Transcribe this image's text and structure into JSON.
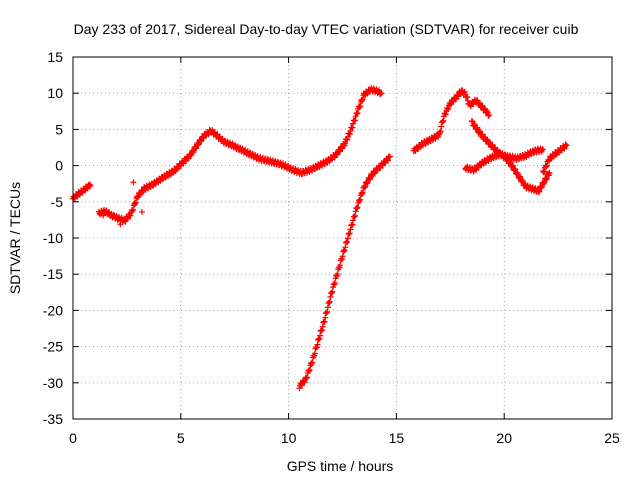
{
  "chart_data": {
    "type": "scatter",
    "title": "Day 233 of 2017, Sidereal Day-to-day VTEC variation (SDTVAR) for receiver cuib",
    "xlabel": "GPS time / hours",
    "ylabel": "SDTVAR / TECUs",
    "xlim": [
      0,
      25
    ],
    "ylim": [
      -35,
      15
    ],
    "xticks": [
      0,
      5,
      10,
      15,
      20,
      25
    ],
    "yticks": [
      -35,
      -30,
      -25,
      -20,
      -15,
      -10,
      -5,
      0,
      5,
      10,
      15
    ],
    "grid": true,
    "marker": "+",
    "series": [
      {
        "name": "SDTVAR",
        "color": "#ff0000",
        "segments": [
          [
            [
              0.0,
              -4.6
            ],
            [
              0.2,
              -4.0
            ],
            [
              0.4,
              -3.6
            ],
            [
              0.6,
              -3.1
            ],
            [
              0.8,
              -2.7
            ]
          ],
          [
            [
              1.2,
              -6.6
            ],
            [
              1.5,
              -6.3
            ],
            [
              1.8,
              -6.9
            ],
            [
              2.1,
              -7.3
            ],
            [
              2.4,
              -7.6
            ],
            [
              2.7,
              -6.6
            ],
            [
              3.0,
              -4.2
            ],
            [
              3.3,
              -3.2
            ],
            [
              3.7,
              -2.6
            ],
            [
              4.2,
              -1.6
            ],
            [
              4.7,
              -0.7
            ],
            [
              5.0,
              0.2
            ],
            [
              5.4,
              1.3
            ],
            [
              5.8,
              3.0
            ],
            [
              6.1,
              4.2
            ],
            [
              6.4,
              4.8
            ],
            [
              6.7,
              4.1
            ],
            [
              7.0,
              3.3
            ],
            [
              7.4,
              2.8
            ],
            [
              7.8,
              2.2
            ],
            [
              8.2,
              1.6
            ],
            [
              8.6,
              1.0
            ],
            [
              9.0,
              0.7
            ],
            [
              9.4,
              0.4
            ],
            [
              9.8,
              0.0
            ],
            [
              10.2,
              -0.6
            ],
            [
              10.6,
              -1.0
            ],
            [
              11.0,
              -0.6
            ],
            [
              11.4,
              0.0
            ],
            [
              11.8,
              0.6
            ],
            [
              12.2,
              1.5
            ],
            [
              12.6,
              3.0
            ],
            [
              12.9,
              5.0
            ],
            [
              13.2,
              7.5
            ],
            [
              13.5,
              9.8
            ],
            [
              13.8,
              10.5
            ],
            [
              14.1,
              10.3
            ],
            [
              14.3,
              10.0
            ]
          ],
          [
            [
              10.5,
              -30.5
            ],
            [
              10.8,
              -29.5
            ],
            [
              11.1,
              -27.0
            ],
            [
              11.4,
              -24.0
            ],
            [
              11.7,
              -21.0
            ],
            [
              12.0,
              -17.5
            ],
            [
              12.3,
              -14.5
            ],
            [
              12.6,
              -11.5
            ],
            [
              12.9,
              -8.5
            ],
            [
              13.2,
              -5.5
            ],
            [
              13.5,
              -3.0
            ],
            [
              13.8,
              -1.5
            ],
            [
              14.1,
              -0.5
            ],
            [
              14.4,
              0.3
            ],
            [
              14.7,
              1.2
            ]
          ],
          [
            [
              15.8,
              2.0
            ],
            [
              16.2,
              3.0
            ],
            [
              16.6,
              3.6
            ],
            [
              17.0,
              4.3
            ],
            [
              17.2,
              6.8
            ],
            [
              17.5,
              8.6
            ],
            [
              17.8,
              9.5
            ],
            [
              18.0,
              10.3
            ],
            [
              18.2,
              9.9
            ],
            [
              18.4,
              8.3
            ],
            [
              18.7,
              9.0
            ],
            [
              19.0,
              8.0
            ],
            [
              19.3,
              7.0
            ]
          ],
          [
            [
              18.5,
              6.0
            ],
            [
              18.9,
              4.4
            ],
            [
              19.3,
              3.1
            ],
            [
              19.7,
              1.9
            ],
            [
              20.1,
              1.0
            ],
            [
              20.4,
              -0.2
            ],
            [
              20.7,
              -1.6
            ],
            [
              21.0,
              -2.9
            ],
            [
              21.3,
              -3.2
            ],
            [
              21.6,
              -3.5
            ],
            [
              21.9,
              -2.0
            ],
            [
              22.1,
              -1.0
            ]
          ],
          [
            [
              18.2,
              -0.3
            ],
            [
              18.6,
              -0.6
            ],
            [
              19.0,
              0.4
            ],
            [
              19.4,
              1.1
            ],
            [
              19.8,
              1.6
            ],
            [
              20.2,
              1.2
            ],
            [
              20.6,
              1.0
            ],
            [
              21.0,
              1.4
            ],
            [
              21.4,
              2.0
            ],
            [
              21.8,
              2.2
            ]
          ],
          [
            [
              21.8,
              -1.0
            ],
            [
              22.1,
              1.0
            ],
            [
              22.4,
              1.7
            ],
            [
              22.7,
              2.4
            ],
            [
              22.9,
              2.8
            ]
          ]
        ],
        "outliers": [
          [
            2.8,
            -2.3
          ],
          [
            2.2,
            -8.1
          ],
          [
            1.4,
            -6.9
          ],
          [
            3.2,
            -6.4
          ]
        ]
      }
    ]
  }
}
